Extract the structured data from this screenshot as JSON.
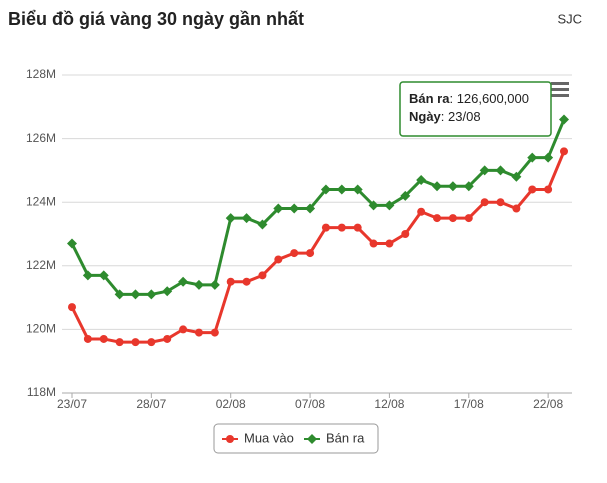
{
  "chart_data": {
    "type": "line",
    "title": "Biểu đồ giá vàng 30 ngày gần nhất",
    "source": "SJC",
    "categories": [
      "23/07",
      null,
      null,
      null,
      null,
      "28/07",
      null,
      null,
      null,
      null,
      "02/08",
      null,
      null,
      null,
      null,
      "07/08",
      null,
      null,
      null,
      null,
      "12/08",
      null,
      null,
      null,
      null,
      "17/08",
      null,
      null,
      null,
      null,
      "22/08",
      null
    ],
    "series": [
      {
        "name": "Mua vào",
        "color": "#e8372c",
        "values": [
          120700000,
          119700000,
          119700000,
          119600000,
          119600000,
          119600000,
          119700000,
          120000000,
          119900000,
          119900000,
          121500000,
          121500000,
          121700000,
          122200000,
          122400000,
          122400000,
          123200000,
          123200000,
          123200000,
          122700000,
          122700000,
          123000000,
          123700000,
          123500000,
          123500000,
          123500000,
          124000000,
          124000000,
          123800000,
          124400000,
          124400000,
          125600000
        ]
      },
      {
        "name": "Bán ra",
        "color": "#2e8b2e",
        "values": [
          122700000,
          121700000,
          121700000,
          121100000,
          121100000,
          121100000,
          121200000,
          121500000,
          121400000,
          121400000,
          123500000,
          123500000,
          123300000,
          123800000,
          123800000,
          123800000,
          124400000,
          124400000,
          124400000,
          123900000,
          123900000,
          124200000,
          124700000,
          124500000,
          124500000,
          124500000,
          125000000,
          125000000,
          124800000,
          125400000,
          125400000,
          126600000
        ]
      }
    ],
    "ylim": [
      118000000,
      128000000
    ],
    "yticks": [
      {
        "value": 118000000,
        "label": "118M"
      },
      {
        "value": 120000000,
        "label": "120M"
      },
      {
        "value": 122000000,
        "label": "122M"
      },
      {
        "value": 124000000,
        "label": "124M"
      },
      {
        "value": 126000000,
        "label": "126M"
      },
      {
        "value": 128000000,
        "label": "128M"
      }
    ],
    "grid": true,
    "tooltip": {
      "lines": [
        {
          "label": "Bán ra",
          "text": ": 126,600,000"
        },
        {
          "label": "Ngày",
          "text": ": 23/08"
        }
      ]
    }
  }
}
